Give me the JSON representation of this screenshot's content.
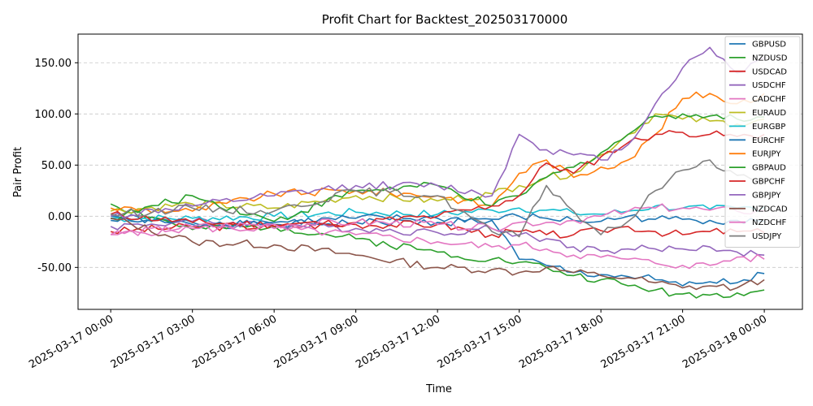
{
  "chart_data": {
    "type": "line",
    "title": "Profit Chart for Backtest_202503170000",
    "xlabel": "Time",
    "ylabel": "Pair Profit",
    "x_ticks": [
      "2025-03-17 00:00",
      "2025-03-17 03:00",
      "2025-03-17 06:00",
      "2025-03-17 09:00",
      "2025-03-17 12:00",
      "2025-03-17 15:00",
      "2025-03-17 18:00",
      "2025-03-17 21:00",
      "2025-03-18 00:00"
    ],
    "x_tick_hours": [
      0,
      3,
      6,
      9,
      12,
      15,
      18,
      21,
      24
    ],
    "xlim_hours": [
      -1.2,
      25.4
    ],
    "y_ticks": [
      0,
      50,
      100,
      150
    ],
    "y_tick_labels": [
      "0.00",
      "50.00",
      "100.00",
      "150.00"
    ],
    "ylim": [
      -91,
      178
    ],
    "grid": "y-dashed",
    "legend_position": "top-right",
    "series": [
      {
        "name": "GBPUSD",
        "color": "#1f77b4",
        "x": [
          0,
          3,
          6,
          9,
          12,
          14,
          15,
          16,
          17,
          18,
          19,
          20,
          21,
          22,
          23,
          24
        ],
        "y": [
          0,
          -8,
          -8,
          -6,
          -6,
          -4,
          -42,
          -48,
          -55,
          -57,
          -59,
          -62,
          -68,
          -64,
          -65,
          -56
        ]
      },
      {
        "name": "NZDUSD",
        "color": "#2ca02c",
        "x": [
          0,
          3,
          6,
          9,
          12,
          14,
          15,
          16,
          17,
          18,
          19,
          20,
          21,
          22,
          23,
          24
        ],
        "y": [
          12,
          -13,
          -10,
          -22,
          -35,
          -42,
          -45,
          -50,
          -58,
          -62,
          -68,
          -72,
          -76,
          -77,
          -75,
          -72
        ]
      },
      {
        "name": "USDCAD",
        "color": "#d62728",
        "x": [
          0,
          3,
          6,
          9,
          12,
          14,
          15,
          16,
          17,
          18,
          19,
          20,
          21,
          22,
          23,
          24
        ],
        "y": [
          -15,
          -10,
          -10,
          -8,
          -8,
          -18,
          -15,
          -18,
          -18,
          -14,
          -10,
          -15,
          -18,
          -15,
          -15,
          -16
        ]
      },
      {
        "name": "USDCHF",
        "color": "#9467bd",
        "x": [
          0,
          3,
          6,
          9,
          12,
          14,
          15,
          16,
          17,
          18,
          19,
          20,
          21,
          22,
          23,
          24
        ],
        "y": [
          -10,
          -5,
          -8,
          -12,
          -16,
          -12,
          -18,
          -22,
          -30,
          -34,
          -32,
          -32,
          -32,
          -30,
          -35,
          -38
        ]
      },
      {
        "name": "CADCHF",
        "color": "#e377c2",
        "x": [
          0,
          3,
          6,
          9,
          12,
          14,
          15,
          16,
          17,
          18,
          19,
          20,
          21,
          22,
          23,
          24
        ],
        "y": [
          -18,
          -12,
          -12,
          -18,
          -25,
          -30,
          -28,
          -32,
          -38,
          -40,
          -42,
          -46,
          -48,
          -48,
          -40,
          -42
        ]
      },
      {
        "name": "EURAUD",
        "color": "#bcbd22",
        "x": [
          0,
          3,
          6,
          9,
          12,
          14,
          15,
          16,
          17,
          18,
          19,
          20,
          21,
          22,
          23,
          24
        ],
        "y": [
          5,
          12,
          8,
          20,
          15,
          22,
          30,
          38,
          42,
          60,
          80,
          100,
          95,
          93,
          90,
          95
        ]
      },
      {
        "name": "EURGBP",
        "color": "#17becf",
        "x": [
          0,
          3,
          6,
          9,
          12,
          14,
          15,
          16,
          17,
          18,
          19,
          20,
          21,
          22,
          23,
          24
        ],
        "y": [
          -2,
          -2,
          0,
          4,
          2,
          6,
          8,
          6,
          3,
          2,
          5,
          10,
          8,
          7,
          8,
          9
        ]
      },
      {
        "name": "EURCHF",
        "color": "#1f77b4",
        "x": [
          0,
          3,
          6,
          9,
          12,
          14,
          15,
          16,
          17,
          18,
          19,
          20,
          21,
          22,
          23,
          24
        ],
        "y": [
          -4,
          -6,
          -6,
          -2,
          -2,
          -3,
          0,
          -2,
          -4,
          -5,
          0,
          -3,
          -3,
          -4,
          -4,
          -5
        ]
      },
      {
        "name": "EURJPY",
        "color": "#ff7f0e",
        "x": [
          0,
          3,
          6,
          9,
          12,
          14,
          15,
          16,
          17,
          18,
          19,
          20,
          21,
          22,
          23,
          24
        ],
        "y": [
          8,
          5,
          22,
          25,
          20,
          10,
          42,
          55,
          38,
          48,
          55,
          80,
          115,
          120,
          110,
          120
        ]
      },
      {
        "name": "GBPAUD",
        "color": "#2ca02c",
        "x": [
          0,
          3,
          6,
          9,
          12,
          14,
          15,
          16,
          17,
          18,
          19,
          20,
          21,
          22,
          23,
          24
        ],
        "y": [
          -2,
          20,
          -5,
          25,
          30,
          10,
          20,
          38,
          48,
          62,
          80,
          98,
          100,
          98,
          95,
          97
        ]
      },
      {
        "name": "GBPCHF",
        "color": "#d62728",
        "x": [
          0,
          3,
          6,
          9,
          12,
          14,
          15,
          16,
          17,
          18,
          19,
          20,
          21,
          22,
          23,
          24
        ],
        "y": [
          2,
          -6,
          -8,
          -6,
          0,
          10,
          20,
          52,
          42,
          58,
          72,
          80,
          82,
          80,
          78,
          80
        ]
      },
      {
        "name": "GBPJPY",
        "color": "#9467bd",
        "x": [
          0,
          3,
          6,
          9,
          12,
          14,
          15,
          16,
          17,
          18,
          19,
          20,
          21,
          22,
          23,
          24
        ],
        "y": [
          0,
          10,
          20,
          30,
          30,
          20,
          80,
          65,
          60,
          55,
          70,
          110,
          145,
          165,
          140,
          155
        ]
      },
      {
        "name": "NZDCAD",
        "color": "#8c564b",
        "x": [
          0,
          3,
          6,
          9,
          12,
          14,
          15,
          16,
          17,
          18,
          19,
          20,
          21,
          22,
          23,
          24
        ],
        "y": [
          -2,
          -25,
          -28,
          -38,
          -50,
          -52,
          -55,
          -50,
          -55,
          -58,
          -60,
          -65,
          -70,
          -68,
          -70,
          -62
        ]
      },
      {
        "name": "NZDCHF",
        "color": "#e377c2",
        "x": [
          0,
          3,
          6,
          9,
          12,
          14,
          15,
          16,
          17,
          18,
          19,
          20,
          21,
          22,
          23,
          24
        ],
        "y": [
          -18,
          -10,
          -8,
          -6,
          -8,
          -12,
          -6,
          -6,
          -4,
          0,
          5,
          8,
          8,
          6,
          5,
          5
        ]
      },
      {
        "name": "USDJPY",
        "color": "#7f7f7f",
        "x": [
          0,
          3,
          6,
          9,
          12,
          14,
          15,
          16,
          17,
          18,
          19,
          20,
          21,
          22,
          23,
          24
        ],
        "y": [
          2,
          8,
          5,
          25,
          20,
          -15,
          -20,
          30,
          5,
          -18,
          -5,
          25,
          45,
          55,
          40,
          35
        ]
      }
    ]
  }
}
